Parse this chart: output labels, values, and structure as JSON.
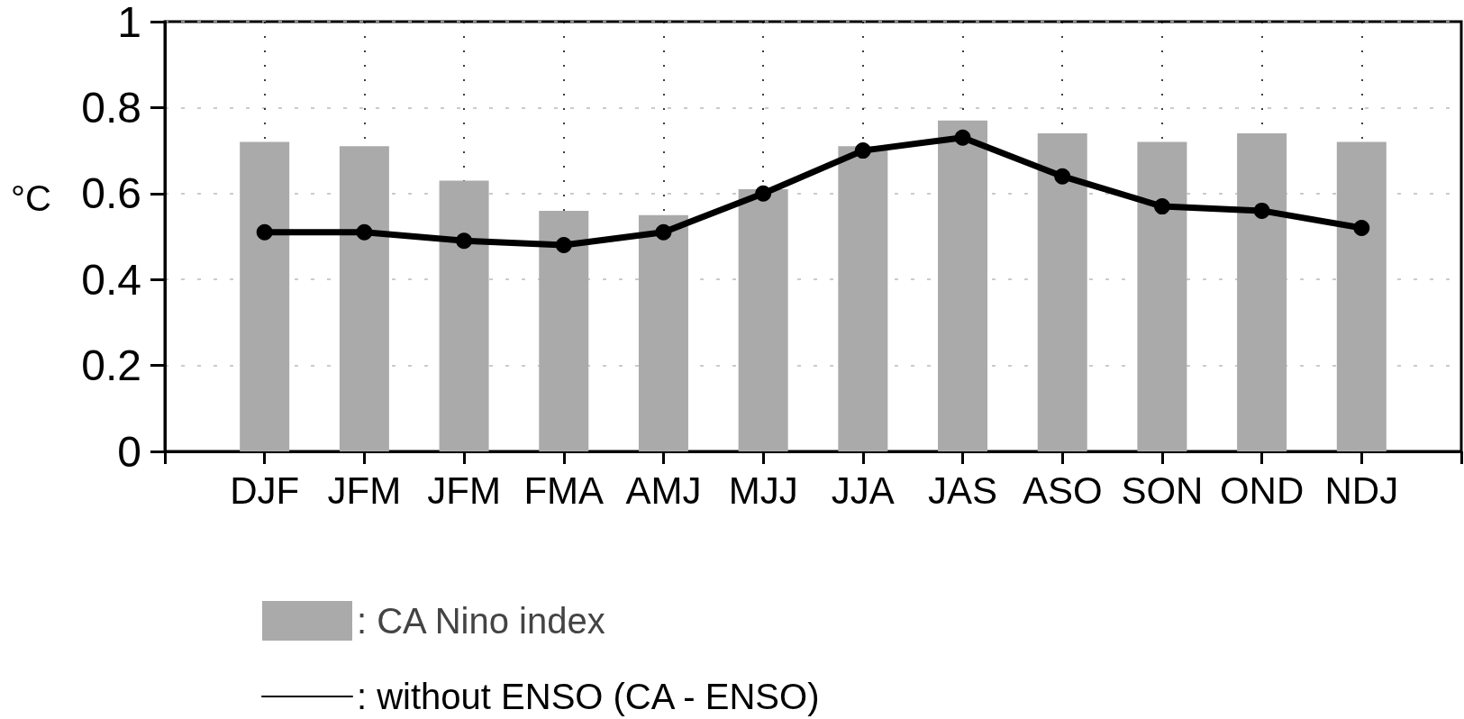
{
  "chart_data": {
    "type": "bar",
    "ylabel": "°C",
    "categories": [
      "DJF",
      "JFM",
      "JFM",
      "FMA",
      "AMJ",
      "MJJ",
      "JJA",
      "JAS",
      "ASO",
      "SON",
      "OND",
      "NDJ"
    ],
    "series": [
      {
        "name": ": CA Nino index",
        "color": "#aaaaaa",
        "values": [
          0.72,
          0.71,
          0.63,
          0.56,
          0.55,
          0.61,
          0.71,
          0.77,
          0.74,
          0.72,
          0.74,
          0.72
        ]
      },
      {
        "name": ": without ENSO (CA - ENSO)",
        "type": "line",
        "color": "#000000",
        "values": [
          0.51,
          0.51,
          0.49,
          0.48,
          0.51,
          0.6,
          0.7,
          0.73,
          0.64,
          0.57,
          0.56,
          0.52
        ]
      }
    ],
    "ylim": [
      0,
      1
    ],
    "yticks": [
      0,
      0.2,
      0.4,
      0.6,
      0.8,
      1
    ],
    "grid": true,
    "legend": "bottom left",
    "marker": "circle"
  }
}
